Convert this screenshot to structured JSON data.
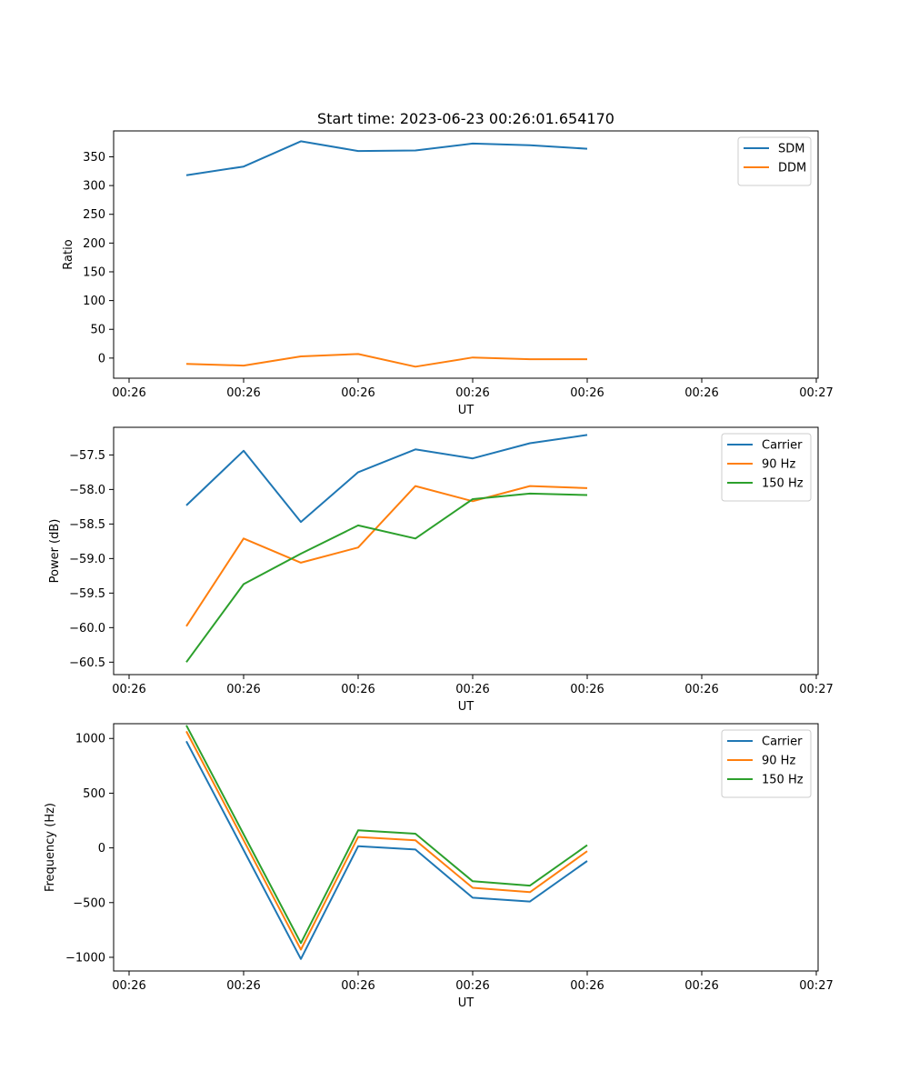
{
  "figure": {
    "title": "Start time: 2023-06-23 00:26:01.654170"
  },
  "chart_data": [
    {
      "type": "line",
      "title": "Start time: 2023-06-23 00:26:01.654170",
      "xlabel": "UT",
      "ylabel": "Ratio",
      "xlim": [
        0,
        6
      ],
      "ylim": [
        -35,
        395
      ],
      "x": [
        0.5,
        1.0,
        1.5,
        2.0,
        2.5,
        3.0,
        3.5,
        4.0
      ],
      "x_ticks": [
        {
          "pos": 0,
          "label": "00:26"
        },
        {
          "pos": 1,
          "label": "00:26"
        },
        {
          "pos": 2,
          "label": "00:26"
        },
        {
          "pos": 3,
          "label": "00:26"
        },
        {
          "pos": 4,
          "label": "00:26"
        },
        {
          "pos": 5,
          "label": "00:26"
        },
        {
          "pos": 6,
          "label": "00:27"
        }
      ],
      "y_ticks": [
        0,
        50,
        100,
        150,
        200,
        250,
        300,
        350
      ],
      "legend_position": "top-right",
      "series": [
        {
          "name": "SDM",
          "color": "#1f77b4",
          "values": [
            318,
            333,
            377,
            360,
            361,
            373,
            370,
            364
          ]
        },
        {
          "name": "DDM",
          "color": "#ff7f0e",
          "values": [
            -10,
            -13,
            3,
            7,
            -15,
            1,
            -2,
            -2
          ]
        }
      ]
    },
    {
      "type": "line",
      "xlabel": "UT",
      "ylabel": "Power (dB)",
      "xlim": [
        0,
        6
      ],
      "ylim": [
        -60.68,
        -57.1
      ],
      "x": [
        0.5,
        1.0,
        1.5,
        2.0,
        2.5,
        3.0,
        3.5,
        4.0
      ],
      "x_ticks": [
        {
          "pos": 0,
          "label": "00:26"
        },
        {
          "pos": 1,
          "label": "00:26"
        },
        {
          "pos": 2,
          "label": "00:26"
        },
        {
          "pos": 3,
          "label": "00:26"
        },
        {
          "pos": 4,
          "label": "00:26"
        },
        {
          "pos": 5,
          "label": "00:26"
        },
        {
          "pos": 6,
          "label": "00:27"
        }
      ],
      "y_ticks": [
        -60.5,
        -60.0,
        -59.5,
        -59.0,
        -58.5,
        -58.0,
        -57.5
      ],
      "y_tick_labels": [
        "−60.5",
        "−60.0",
        "−59.5",
        "−59.0",
        "−58.5",
        "−58.0",
        "−57.5"
      ],
      "legend_position": "top-right",
      "series": [
        {
          "name": "Carrier",
          "color": "#1f77b4",
          "values": [
            -58.23,
            -57.44,
            -58.47,
            -57.75,
            -57.42,
            -57.55,
            -57.33,
            -57.21
          ]
        },
        {
          "name": "90 Hz",
          "color": "#ff7f0e",
          "values": [
            -59.98,
            -58.71,
            -59.06,
            -58.84,
            -57.95,
            -58.17,
            -57.95,
            -57.98
          ]
        },
        {
          "name": "150 Hz",
          "color": "#2ca02c",
          "values": [
            -60.5,
            -59.37,
            -58.93,
            -58.52,
            -58.71,
            -58.14,
            -58.06,
            -58.08
          ]
        }
      ]
    },
    {
      "type": "line",
      "xlabel": "UT",
      "ylabel": "Frequency (Hz)",
      "xlim": [
        0,
        6
      ],
      "ylim": [
        -1125,
        1135
      ],
      "x": [
        0.5,
        1.0,
        1.5,
        2.0,
        2.5,
        3.0,
        3.5,
        4.0
      ],
      "x_ticks": [
        {
          "pos": 0,
          "label": "00:26"
        },
        {
          "pos": 1,
          "label": "00:26"
        },
        {
          "pos": 2,
          "label": "00:26"
        },
        {
          "pos": 3,
          "label": "00:26"
        },
        {
          "pos": 4,
          "label": "00:26"
        },
        {
          "pos": 5,
          "label": "00:26"
        },
        {
          "pos": 6,
          "label": "00:27"
        }
      ],
      "y_ticks": [
        -1000,
        -500,
        0,
        500,
        1000
      ],
      "y_tick_labels": [
        "−1000",
        "−500",
        "0",
        "500",
        "1000"
      ],
      "legend_position": "top-right",
      "series": [
        {
          "name": "Carrier",
          "color": "#1f77b4",
          "values": [
            975,
            -20,
            -1015,
            15,
            -15,
            -455,
            -490,
            -120
          ]
        },
        {
          "name": "90 Hz",
          "color": "#ff7f0e",
          "values": [
            1065,
            70,
            -930,
            100,
            70,
            -365,
            -405,
            -30
          ]
        },
        {
          "name": "150 Hz",
          "color": "#2ca02c",
          "values": [
            1120,
            125,
            -870,
            160,
            130,
            -305,
            -345,
            25
          ]
        }
      ]
    }
  ]
}
